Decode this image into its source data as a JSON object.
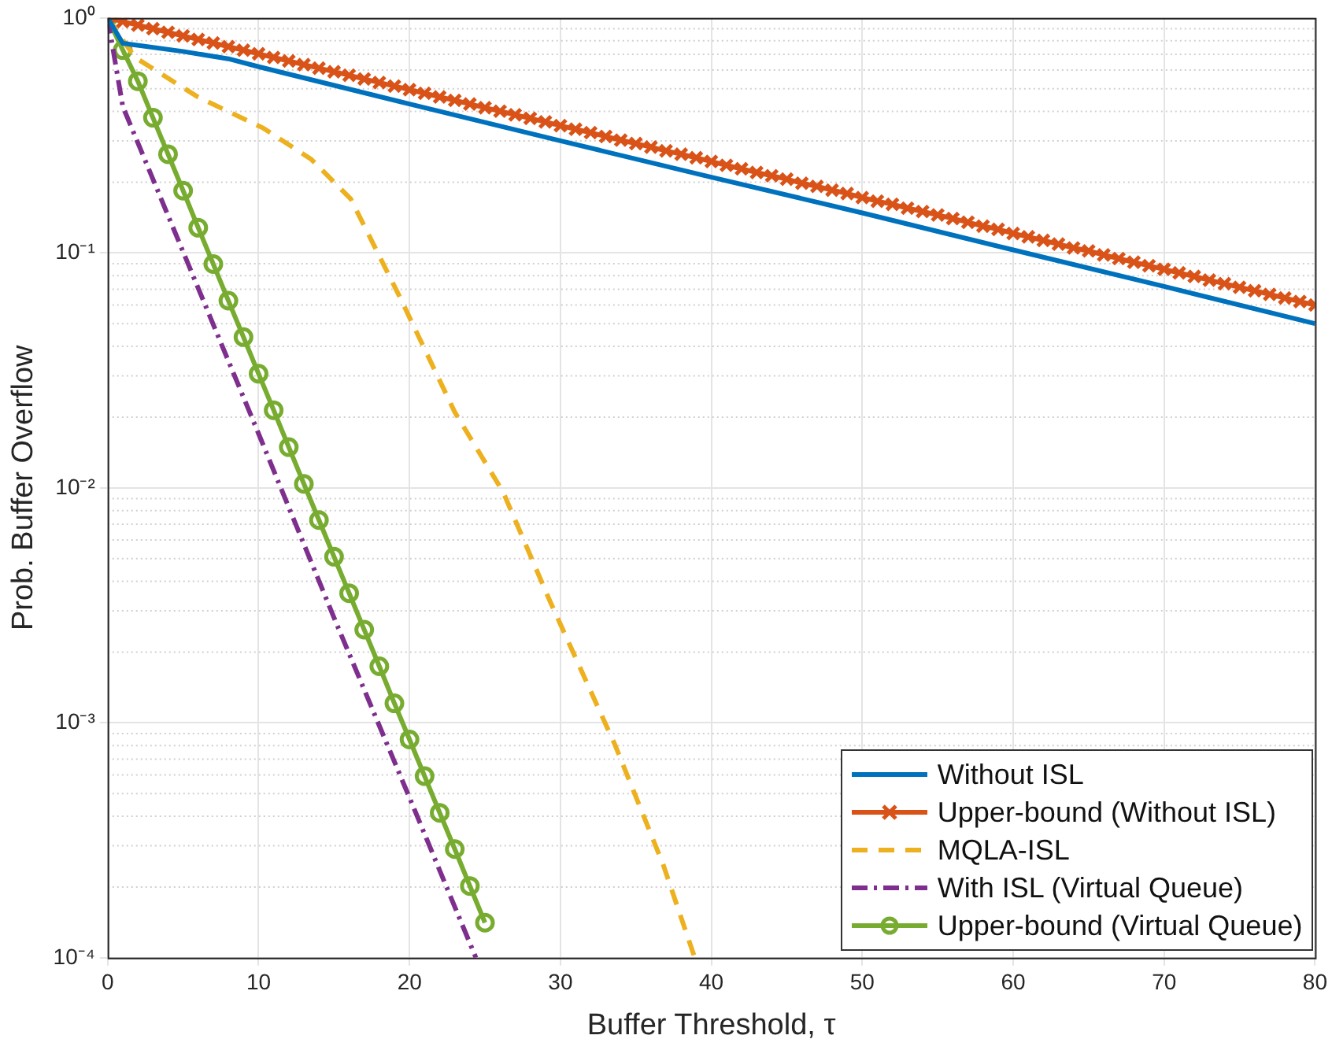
{
  "chart_data": {
    "type": "line",
    "xlabel": "Buffer Threshold, τ",
    "ylabel": "Prob. Buffer Overflow",
    "log": "y",
    "grid": true,
    "legend": "bottom right",
    "xlim": [
      0,
      80
    ],
    "xticks": [
      0,
      10,
      20,
      30,
      40,
      50,
      60,
      70,
      80
    ],
    "ylim": [
      0.0001,
      1
    ],
    "yticks": [
      {
        "value": 0.0001,
        "label": "10⁻⁴"
      },
      {
        "value": 0.001,
        "label": "10⁻³"
      },
      {
        "value": 0.01,
        "label": "10⁻²"
      },
      {
        "value": 0.1,
        "label": "10⁻¹"
      },
      {
        "value": 1,
        "label": "10⁰"
      }
    ],
    "series": [
      {
        "name": "Without ISL",
        "color": "#0072bd",
        "line_style": "solid",
        "marker": "none",
        "x": [
          0,
          1,
          5,
          8,
          10,
          20,
          30,
          40,
          50,
          60,
          70,
          80
        ],
        "values": [
          1,
          0.78,
          0.72,
          0.67,
          0.62,
          0.43,
          0.3,
          0.21,
          0.148,
          0.103,
          0.072,
          0.05
        ]
      },
      {
        "name": "Upper-bound (Without ISL)",
        "color": "#d95319",
        "line_style": "solid",
        "marker": "cross",
        "x": [
          0,
          1,
          2,
          3,
          4,
          5,
          6,
          7,
          8,
          9,
          10,
          11,
          12,
          13,
          14,
          15,
          16,
          17,
          18,
          19,
          20,
          21,
          22,
          23,
          24,
          25,
          26,
          27,
          28,
          29,
          30,
          31,
          32,
          33,
          34,
          35,
          36,
          37,
          38,
          39,
          40,
          41,
          42,
          43,
          44,
          45,
          46,
          47,
          48,
          49,
          50,
          51,
          52,
          53,
          54,
          55,
          56,
          57,
          58,
          59,
          60,
          61,
          62,
          63,
          64,
          65,
          66,
          67,
          68,
          69,
          70,
          71,
          72,
          73,
          74,
          75,
          76,
          77,
          78,
          79,
          80
        ],
        "values": [
          1,
          0.965,
          0.932,
          0.9,
          0.869,
          0.839,
          0.81,
          0.782,
          0.755,
          0.729,
          0.704,
          0.679,
          0.656,
          0.633,
          0.611,
          0.59,
          0.57,
          0.55,
          0.531,
          0.513,
          0.495,
          0.478,
          0.461,
          0.446,
          0.43,
          0.415,
          0.401,
          0.387,
          0.374,
          0.361,
          0.348,
          0.336,
          0.325,
          0.313,
          0.302,
          0.292,
          0.282,
          0.272,
          0.263,
          0.254,
          0.245,
          0.236,
          0.228,
          0.22,
          0.213,
          0.206,
          0.198,
          0.192,
          0.185,
          0.179,
          0.172,
          0.166,
          0.161,
          0.155,
          0.15,
          0.145,
          0.14,
          0.135,
          0.13,
          0.126,
          0.121,
          0.117,
          0.113,
          0.109,
          0.105,
          0.102,
          0.098,
          0.0946,
          0.0913,
          0.0882,
          0.0852,
          0.0822,
          0.0794,
          0.0766,
          0.074,
          0.0714,
          0.069,
          0.0666,
          0.0643,
          0.0621,
          0.06
        ]
      },
      {
        "name": "MQLA-ISL",
        "color": "#edb120",
        "line_style": "dashed",
        "marker": "none",
        "x": [
          0,
          1.8,
          6,
          10.3,
          13.5,
          16.1,
          19.3,
          23,
          26.2,
          29.3,
          33.6,
          36.8,
          38.9
        ],
        "values": [
          1,
          0.68,
          0.46,
          0.34,
          0.25,
          0.17,
          0.066,
          0.021,
          0.0096,
          0.0033,
          0.00081,
          0.00025,
          0.0001
        ]
      },
      {
        "name": "With ISL (Virtual Queue)",
        "color": "#7e2f8e",
        "line_style": "dashdot",
        "marker": "none",
        "x": [
          0,
          1,
          5,
          10,
          15,
          20,
          24.4
        ],
        "values": [
          1,
          0.42,
          0.101,
          0.017,
          0.0028,
          0.00048,
          0.0001
        ]
      },
      {
        "name": "Upper-bound (Virtual Queue)",
        "color": "#77ac30",
        "line_style": "solid",
        "marker": "circle",
        "x": [
          0,
          1,
          2,
          3,
          4,
          5,
          6,
          7,
          8,
          9,
          10,
          11,
          12,
          13,
          14,
          15,
          16,
          17,
          18,
          19,
          20,
          21,
          22,
          23,
          24,
          25
        ],
        "values": [
          1,
          0.73,
          0.538,
          0.376,
          0.263,
          0.184,
          0.128,
          0.0896,
          0.0626,
          0.0438,
          0.0306,
          0.0214,
          0.0149,
          0.0104,
          0.00729,
          0.00509,
          0.00356,
          0.00249,
          0.00174,
          0.00121,
          0.000849,
          0.000593,
          0.000414,
          0.00029,
          0.000202,
          0.000141
        ]
      }
    ]
  }
}
